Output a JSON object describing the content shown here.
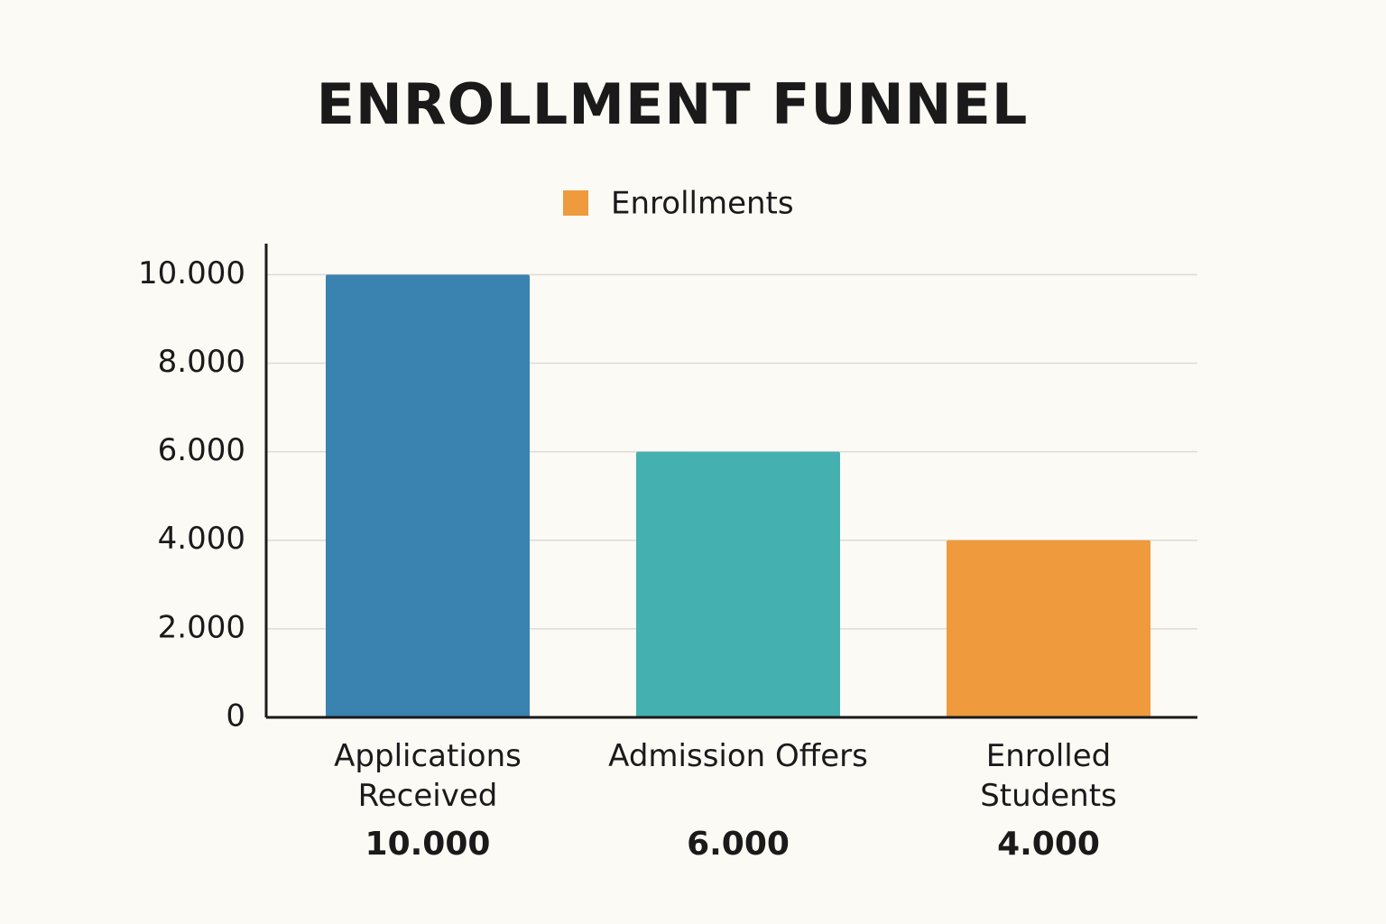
{
  "chart_data": {
    "type": "bar",
    "title": "ENROLLMENT FUNNEL",
    "categories": [
      "Applications Received",
      "Admission Offers",
      "Enrolled Students"
    ],
    "series": [
      {
        "name": "Enrollments",
        "color": "#ee9a3d",
        "colors": [
          "#3a82b0",
          "#45b0b0",
          "#ee9a3d"
        ],
        "values": [
          10000,
          6000,
          4000
        ],
        "value_labels": [
          "10.000",
          "6.000",
          "4.000"
        ]
      }
    ],
    "ylim": [
      0,
      10700
    ],
    "yticks": [
      0,
      {
        "value": 2000,
        "label": "2.000"
      },
      {
        "value": 4000,
        "label": "4.000"
      },
      {
        "value": 6000,
        "label": "6.000"
      },
      {
        "value": 8000,
        "label": "8.000"
      },
      {
        "value": 10000,
        "label": "10.000"
      }
    ],
    "grid": true,
    "legend": "top"
  }
}
